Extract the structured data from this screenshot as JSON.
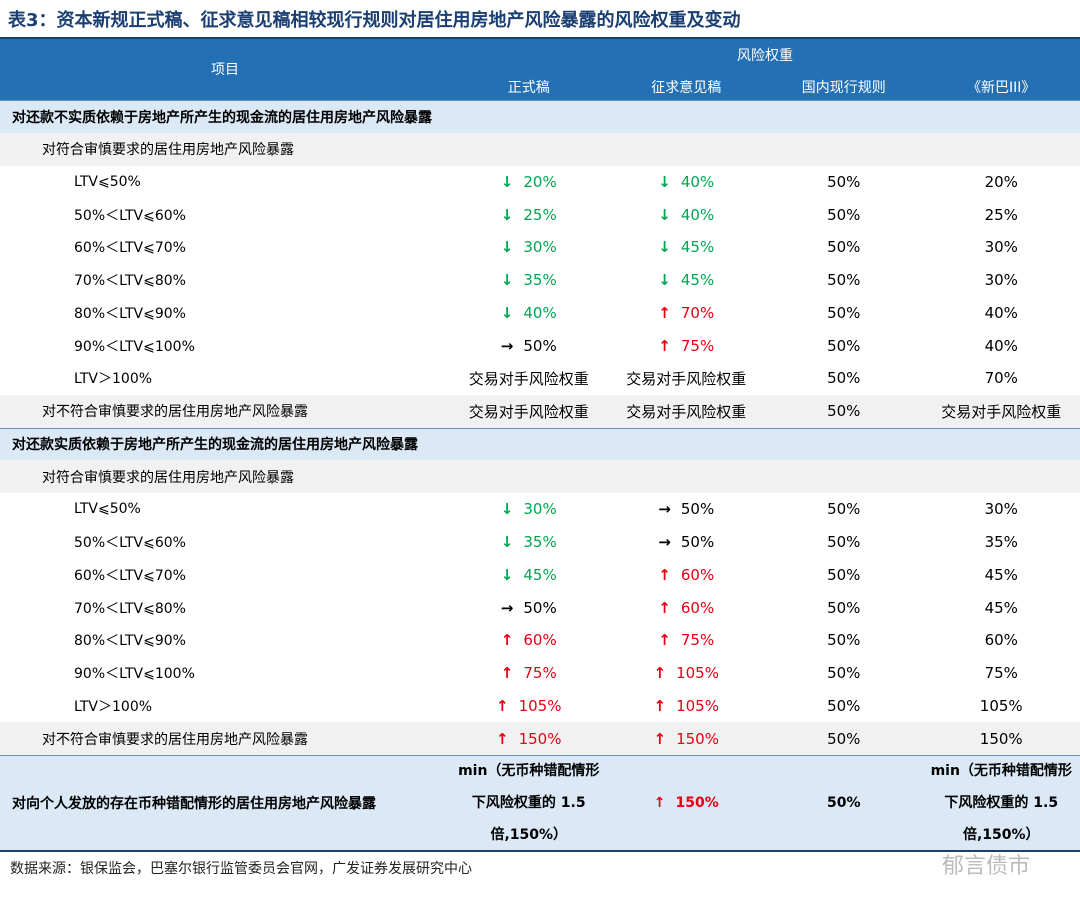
{
  "title": "表3：资本新规正式稿、征求意见稿相较现行规则对居住用房地产风险暴露的风险权重及变动",
  "header": {
    "item": "项目",
    "group": "风险权重",
    "columns": [
      "正式稿",
      "征求意见稿",
      "国内现行规则",
      "《新巴III》"
    ]
  },
  "sections": [
    {
      "label": "对还款不实质依赖于房地产所产生的现金流的居住用房地产风险暴露",
      "groups": [
        {
          "label": "对符合审慎要求的居住用房地产风险暴露",
          "rows": [
            {
              "label": "LTV⩽50%",
              "cells": [
                {
                  "arrow": "↓",
                  "text": "20%"
                },
                {
                  "arrow": "↓",
                  "text": "40%"
                },
                "50%",
                "20%"
              ]
            },
            {
              "label": "50%＜LTV⩽60%",
              "cells": [
                {
                  "arrow": "↓",
                  "text": "25%"
                },
                {
                  "arrow": "↓",
                  "text": "40%"
                },
                "50%",
                "25%"
              ]
            },
            {
              "label": "60%＜LTV⩽70%",
              "cells": [
                {
                  "arrow": "↓",
                  "text": "30%"
                },
                {
                  "arrow": "↓",
                  "text": "45%"
                },
                "50%",
                "30%"
              ]
            },
            {
              "label": "70%＜LTV⩽80%",
              "cells": [
                {
                  "arrow": "↓",
                  "text": "35%"
                },
                {
                  "arrow": "↓",
                  "text": "45%"
                },
                "50%",
                "30%"
              ]
            },
            {
              "label": "80%＜LTV⩽90%",
              "cells": [
                {
                  "arrow": "↓",
                  "text": "40%"
                },
                {
                  "arrow": "↑",
                  "text": "70%"
                },
                "50%",
                "40%"
              ]
            },
            {
              "label": "90%＜LTV⩽100%",
              "cells": [
                {
                  "arrow": "→",
                  "text": "50%"
                },
                {
                  "arrow": "↑",
                  "text": "75%"
                },
                "50%",
                "40%"
              ]
            },
            {
              "label": "LTV＞100%",
              "cells": [
                "交易对手风险权重",
                "交易对手风险权重",
                "50%",
                "70%"
              ]
            }
          ]
        },
        {
          "label": "对不符合审慎要求的居住用房地产风险暴露",
          "cells": [
            "交易对手风险权重",
            "交易对手风险权重",
            "50%",
            "交易对手风险权重"
          ]
        }
      ]
    },
    {
      "label": "对还款实质依赖于房地产所产生的现金流的居住用房地产风险暴露",
      "groups": [
        {
          "label": "对符合审慎要求的居住用房地产风险暴露",
          "rows": [
            {
              "label": "LTV⩽50%",
              "cells": [
                {
                  "arrow": "↓",
                  "text": "30%"
                },
                {
                  "arrow": "→",
                  "text": "50%"
                },
                "50%",
                "30%"
              ]
            },
            {
              "label": "50%＜LTV⩽60%",
              "cells": [
                {
                  "arrow": "↓",
                  "text": "35%"
                },
                {
                  "arrow": "→",
                  "text": "50%"
                },
                "50%",
                "35%"
              ]
            },
            {
              "label": "60%＜LTV⩽70%",
              "cells": [
                {
                  "arrow": "↓",
                  "text": "45%"
                },
                {
                  "arrow": "↑",
                  "text": "60%"
                },
                "50%",
                "45%"
              ]
            },
            {
              "label": "70%＜LTV⩽80%",
              "cells": [
                {
                  "arrow": "→",
                  "text": "50%"
                },
                {
                  "arrow": "↑",
                  "text": "60%"
                },
                "50%",
                "45%"
              ]
            },
            {
              "label": "80%＜LTV⩽90%",
              "cells": [
                {
                  "arrow": "↑",
                  "text": "60%"
                },
                {
                  "arrow": "↑",
                  "text": "75%"
                },
                "50%",
                "60%"
              ]
            },
            {
              "label": "90%＜LTV⩽100%",
              "cells": [
                {
                  "arrow": "↑",
                  "text": "75%"
                },
                {
                  "arrow": "↑",
                  "text": "105%"
                },
                "50%",
                "75%"
              ]
            },
            {
              "label": "LTV＞100%",
              "cells": [
                {
                  "arrow": "↑",
                  "text": "105%"
                },
                {
                  "arrow": "↑",
                  "text": "105%"
                },
                "50%",
                "105%"
              ]
            }
          ]
        },
        {
          "label": "对不符合审慎要求的居住用房地产风险暴露",
          "cells": [
            {
              "arrow": "↑",
              "text": "150%"
            },
            {
              "arrow": "↑",
              "text": "150%"
            },
            "50%",
            "150%"
          ]
        }
      ]
    },
    {
      "label": "对向个人发放的存在币种错配情形的居住用房地产风险暴露",
      "cells": [
        "min（无币种错配情形下风险权重的 1.5 倍,150%）",
        {
          "arrow": "↑",
          "text": "150%"
        },
        "50%",
        "min（无币种错配情形下风险权重的 1.5 倍,150%）"
      ]
    }
  ],
  "source": "数据来源：银保监会，巴塞尔银行监管委员会官网，广发证券发展研究中心",
  "watermark": "郁言债市"
}
